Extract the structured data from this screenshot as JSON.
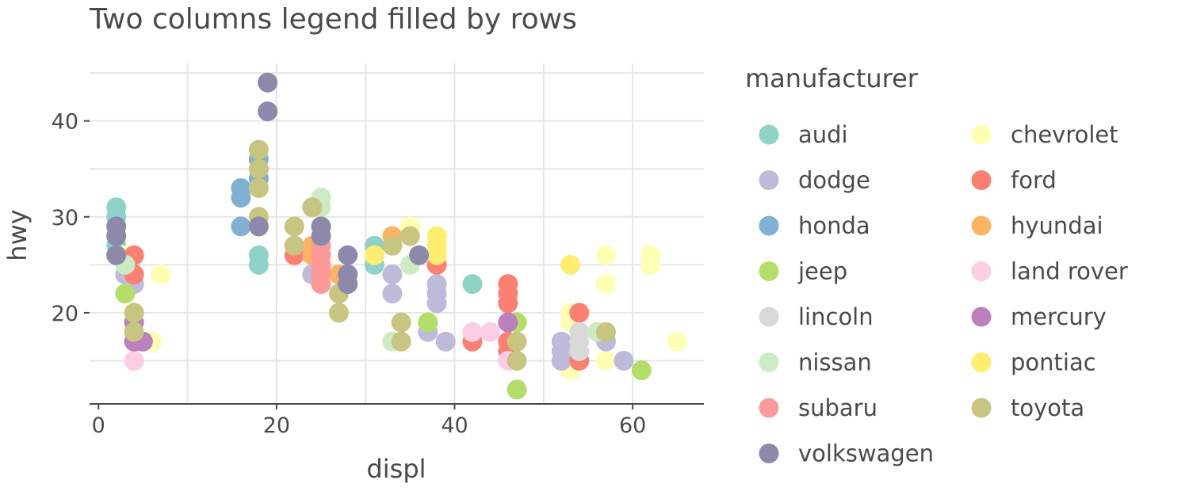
{
  "chart_data": {
    "type": "scatter",
    "title": "Two columns legend filled by rows",
    "xlabel": "displ",
    "ylabel": "hwy",
    "xlim": [
      -1,
      68
    ],
    "ylim": [
      10.5,
      46
    ],
    "xticks": [
      0,
      20,
      40,
      60
    ],
    "yticks": [
      20,
      30,
      40
    ],
    "grid": true,
    "legend": {
      "title": "manufacturer",
      "placement": "right",
      "columns": 2,
      "fill": "rows"
    },
    "series": [
      {
        "name": "audi",
        "color": "#8dd3c7",
        "points": [
          [
            2,
            31
          ],
          [
            2,
            30
          ],
          [
            2,
            29
          ],
          [
            2,
            28
          ],
          [
            2,
            27
          ],
          [
            2,
            26
          ],
          [
            18,
            26
          ],
          [
            18,
            25
          ],
          [
            31,
            27
          ],
          [
            31,
            25
          ],
          [
            42,
            23
          ]
        ]
      },
      {
        "name": "chevrolet",
        "color": "#ffffb3",
        "points": [
          [
            3,
            26
          ],
          [
            6,
            17
          ],
          [
            7,
            24
          ],
          [
            35,
            29
          ],
          [
            53,
            20
          ],
          [
            53,
            19
          ],
          [
            53,
            14
          ],
          [
            57,
            26
          ],
          [
            57,
            23
          ],
          [
            57,
            15
          ],
          [
            62,
            26
          ],
          [
            62,
            25
          ],
          [
            65,
            17
          ]
        ]
      },
      {
        "name": "dodge",
        "color": "#bebada",
        "points": [
          [
            3,
            24
          ],
          [
            4,
            23
          ],
          [
            24,
            24
          ],
          [
            33,
            24
          ],
          [
            33,
            22
          ],
          [
            37,
            18
          ],
          [
            38,
            23
          ],
          [
            38,
            22
          ],
          [
            38,
            21
          ],
          [
            39,
            17
          ],
          [
            52,
            17
          ],
          [
            52,
            16
          ],
          [
            52,
            15
          ],
          [
            57,
            17
          ],
          [
            59,
            15
          ]
        ]
      },
      {
        "name": "ford",
        "color": "#fb8072",
        "points": [
          [
            4,
            26
          ],
          [
            4,
            24
          ],
          [
            22,
            26
          ],
          [
            38,
            25
          ],
          [
            42,
            17
          ],
          [
            46,
            23
          ],
          [
            46,
            22
          ],
          [
            46,
            21
          ],
          [
            46,
            19
          ],
          [
            46,
            17
          ],
          [
            46,
            16
          ],
          [
            54,
            20
          ],
          [
            54,
            15
          ]
        ]
      },
      {
        "name": "honda",
        "color": "#80b1d3",
        "points": [
          [
            16,
            33
          ],
          [
            16,
            32
          ],
          [
            16,
            29
          ],
          [
            18,
            36
          ],
          [
            18,
            34
          ]
        ]
      },
      {
        "name": "hyundai",
        "color": "#fdb462",
        "points": [
          [
            24,
            27
          ],
          [
            24,
            26
          ],
          [
            27,
            24
          ],
          [
            33,
            28
          ],
          [
            33,
            27
          ]
        ]
      },
      {
        "name": "jeep",
        "color": "#b3de69",
        "points": [
          [
            3,
            22
          ],
          [
            37,
            19
          ],
          [
            47,
            19
          ],
          [
            47,
            12
          ],
          [
            61,
            14
          ]
        ]
      },
      {
        "name": "land rover",
        "color": "#fccde5",
        "points": [
          [
            4,
            15
          ],
          [
            42,
            18
          ],
          [
            44,
            18
          ],
          [
            46,
            15
          ]
        ]
      },
      {
        "name": "lincoln",
        "color": "#d9d9d9",
        "points": [
          [
            54,
            18
          ],
          [
            54,
            17
          ],
          [
            54,
            16
          ]
        ]
      },
      {
        "name": "mercury",
        "color": "#bc80bd",
        "points": [
          [
            4,
            19
          ],
          [
            4,
            17
          ],
          [
            5,
            17
          ],
          [
            46,
            19
          ]
        ]
      },
      {
        "name": "nissan",
        "color": "#ccebc5",
        "points": [
          [
            3,
            25
          ],
          [
            25,
            32
          ],
          [
            25,
            31
          ],
          [
            33,
            17
          ],
          [
            35,
            25
          ],
          [
            56,
            18
          ]
        ]
      },
      {
        "name": "pontiac",
        "color": "#ffed6f",
        "points": [
          [
            31,
            26
          ],
          [
            38,
            28
          ],
          [
            38,
            27
          ],
          [
            38,
            26
          ],
          [
            53,
            25
          ]
        ]
      },
      {
        "name": "subaru",
        "color": "#fb9a99",
        "points": [
          [
            25,
            27
          ],
          [
            25,
            26
          ],
          [
            25,
            25
          ],
          [
            25,
            24
          ],
          [
            25,
            23
          ]
        ]
      },
      {
        "name": "toyota",
        "color": "#c7c57f",
        "points": [
          [
            4,
            20
          ],
          [
            4,
            18
          ],
          [
            18,
            37
          ],
          [
            18,
            35
          ],
          [
            18,
            33
          ],
          [
            18,
            30
          ],
          [
            22,
            29
          ],
          [
            22,
            27
          ],
          [
            24,
            31
          ],
          [
            27,
            22
          ],
          [
            27,
            20
          ],
          [
            33,
            27
          ],
          [
            34,
            19
          ],
          [
            34,
            17
          ],
          [
            35,
            28
          ],
          [
            47,
            17
          ],
          [
            47,
            15
          ],
          [
            57,
            18
          ]
        ]
      },
      {
        "name": "volkswagen",
        "color": "#8d89ab",
        "points": [
          [
            2,
            29
          ],
          [
            2,
            28
          ],
          [
            2,
            26
          ],
          [
            18,
            29
          ],
          [
            19,
            44
          ],
          [
            19,
            41
          ],
          [
            25,
            29
          ],
          [
            25,
            28
          ],
          [
            28,
            26
          ],
          [
            28,
            24
          ],
          [
            28,
            23
          ],
          [
            36,
            26
          ]
        ]
      }
    ]
  }
}
